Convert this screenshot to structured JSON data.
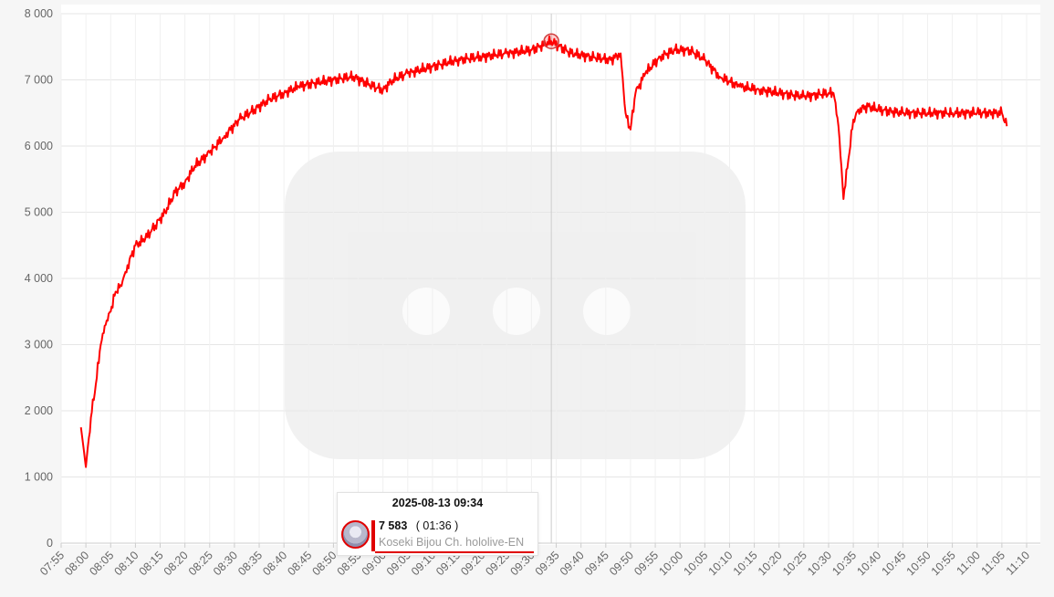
{
  "colors": {
    "line": "#ff0000",
    "grid": "#e6e6e6",
    "crosshair": "#cccccc",
    "background": "#f6f6f6",
    "plot_background": "#ffffff"
  },
  "icons": {
    "background": "youtube-play-placeholder-icon",
    "avatar": "channel-avatar-icon"
  },
  "chart_data": {
    "type": "line",
    "title": "",
    "xlabel": "",
    "ylabel": "",
    "x_ticks": [
      "07:55",
      "08:00",
      "08:05",
      "08:10",
      "08:15",
      "08:20",
      "08:25",
      "08:30",
      "08:35",
      "08:40",
      "08:45",
      "08:50",
      "08:55",
      "09:00",
      "09:05",
      "09:10",
      "09:15",
      "09:20",
      "09:25",
      "09:30",
      "09:35",
      "09:40",
      "09:45",
      "09:50",
      "09:55",
      "10:00",
      "10:05",
      "10:10",
      "10:15",
      "10:20",
      "10:25",
      "10:30",
      "10:35",
      "10:40",
      "10:45",
      "10:50",
      "10:55",
      "11:00",
      "11:05",
      "11:10"
    ],
    "y_ticks": [
      "0",
      "1 000",
      "2 000",
      "3 000",
      "4 000",
      "5 000",
      "6 000",
      "7 000",
      "8 000"
    ],
    "ylim": [
      0,
      8000
    ],
    "xlim": [
      "07:55",
      "11:10"
    ],
    "grid": true,
    "legend": "none",
    "series": [
      {
        "x": [
          "07:59",
          "08:00",
          "08:01",
          "08:02",
          "08:03",
          "08:04",
          "08:05",
          "08:06",
          "08:07",
          "08:08",
          "08:10",
          "08:12",
          "08:14",
          "08:16",
          "08:18",
          "08:20",
          "08:22",
          "08:25",
          "08:28",
          "08:31",
          "08:34",
          "08:37",
          "08:40",
          "08:43",
          "08:46",
          "08:50",
          "08:54",
          "08:58",
          "09:00",
          "09:02",
          "09:05",
          "09:10",
          "09:15",
          "09:20",
          "09:25",
          "09:30",
          "09:34",
          "09:38",
          "09:42",
          "09:46",
          "09:48",
          "09:49",
          "09:50",
          "09:51",
          "09:53",
          "09:56",
          "09:59",
          "10:02",
          "10:05",
          "10:08",
          "10:12",
          "10:16",
          "10:20",
          "10:25",
          "10:30",
          "10:31",
          "10:32",
          "10:33",
          "10:34",
          "10:35",
          "10:36",
          "10:38",
          "10:40",
          "10:45",
          "10:50",
          "10:55",
          "11:00",
          "11:05",
          "11:06"
        ],
        "y": [
          1750,
          1150,
          1900,
          2400,
          3000,
          3300,
          3500,
          3800,
          3900,
          4100,
          4500,
          4600,
          4800,
          5000,
          5300,
          5450,
          5700,
          5900,
          6150,
          6400,
          6550,
          6700,
          6800,
          6900,
          6950,
          7000,
          7050,
          6900,
          6850,
          7000,
          7100,
          7200,
          7300,
          7350,
          7400,
          7450,
          7583,
          7400,
          7350,
          7300,
          7400,
          6500,
          6250,
          6800,
          7100,
          7350,
          7450,
          7450,
          7300,
          7050,
          6900,
          6850,
          6800,
          6750,
          6800,
          6800,
          6300,
          5200,
          5800,
          6400,
          6550,
          6600,
          6550,
          6500,
          6500,
          6500,
          6500,
          6500,
          6300
        ]
      }
    ],
    "highlight": {
      "x": "09:34",
      "y": 7583
    }
  },
  "tooltip": {
    "date": "2025-08-13 09:34",
    "value": "7 583",
    "duration": "( 01:36 )",
    "channel": "Koseki Bijou Ch. hololive-EN"
  }
}
